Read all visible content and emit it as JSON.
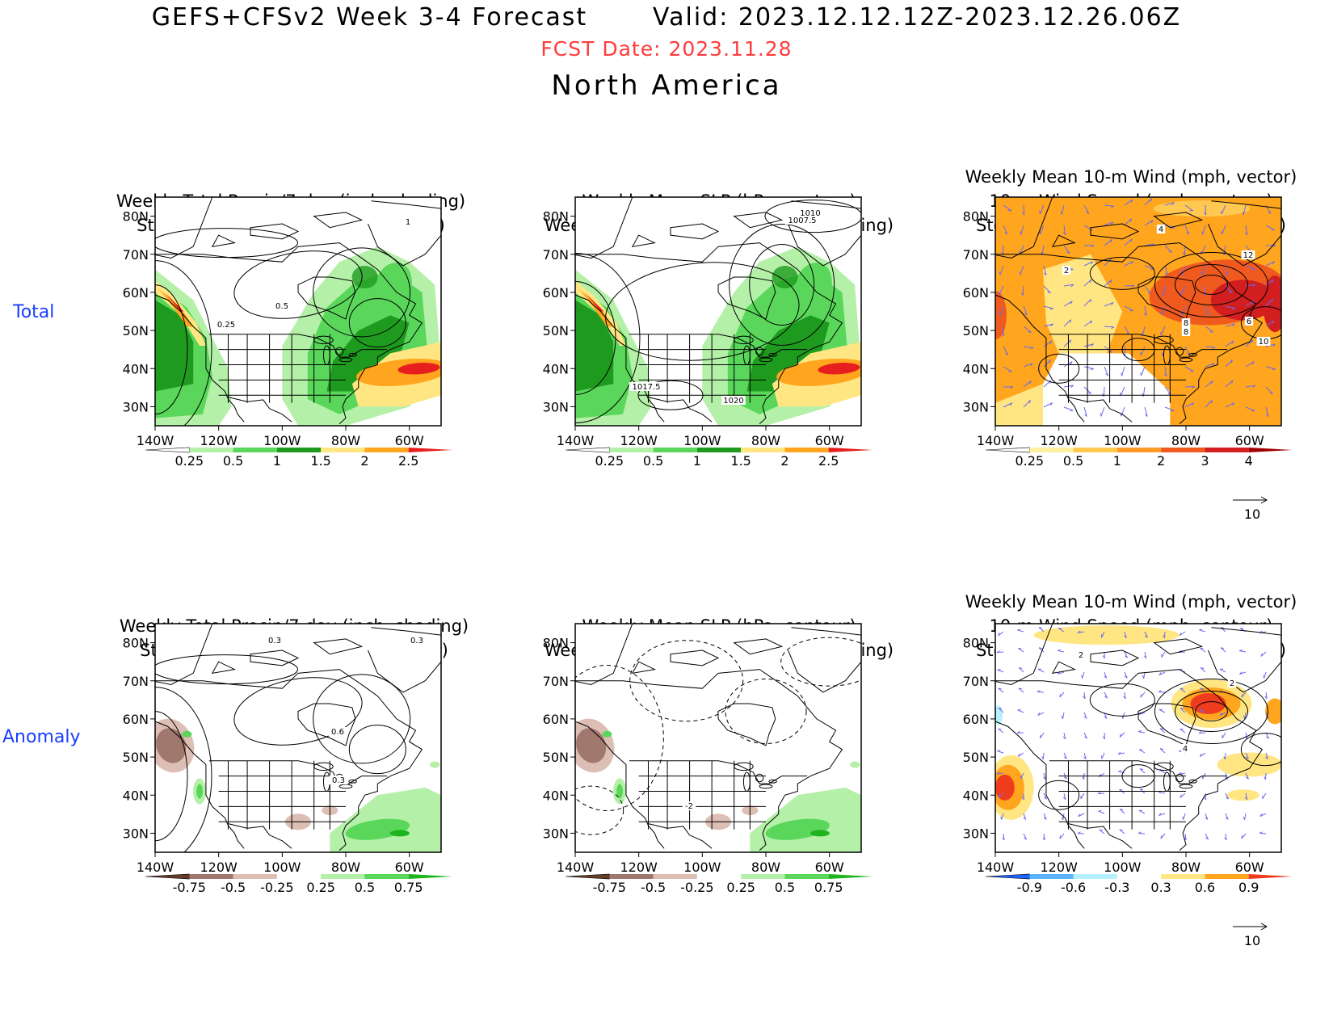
{
  "header": {
    "title": "GEFS+CFSv2 Week 3-4 Forecast       Valid: 2023.12.12.12Z-2023.12.26.06Z",
    "fcst_date": "FCST Date: 2023.11.28",
    "region": "North America"
  },
  "rows": [
    {
      "label": "Total"
    },
    {
      "label": "Anomaly"
    }
  ],
  "titles": {
    "precip_storm": [
      "Weekly Total Precip/7-day (inch, shading)",
      "Storm Track Density/7-day (contour)"
    ],
    "slp_precip": [
      "Weekly Mean SLP (hPa, contour)",
      "Weekly Total Precip/7-day (inch, shading)"
    ],
    "wind_storm": [
      "Weekly Mean 10-m Wind (mph, vector)",
      "10-m Wind Speed (mph, contour)",
      "Storm Track Density/7-day (shading)"
    ]
  },
  "axes": {
    "lat_labels": [
      "80N",
      "70N",
      "60N",
      "50N",
      "40N",
      "30N"
    ],
    "lon_labels": [
      "140W",
      "120W",
      "100W",
      "80W",
      "60W"
    ]
  },
  "colorbars": {
    "precip_total": {
      "labels": [
        "0.25",
        "0.5",
        "1",
        "1.5",
        "2",
        "2.5"
      ],
      "colors": [
        "#ffffff",
        "#b4f0a8",
        "#5ad75a",
        "#1e9b1e",
        "#ffe682",
        "#ffa51e",
        "#e61e1e"
      ]
    },
    "storm_total": {
      "labels": [
        "0.25",
        "0.5",
        "1",
        "2",
        "3",
        "4"
      ],
      "colors": [
        "#ffffff",
        "#fff0a0",
        "#ffc850",
        "#ff9a28",
        "#f05a1e",
        "#d21e1e",
        "#a00000"
      ]
    },
    "precip_anom": {
      "labels": [
        "-0.75",
        "-0.5",
        "-0.25",
        "0.25",
        "0.5",
        "0.75"
      ],
      "colors": [
        "#643c28",
        "#a0786e",
        "#dcbeb4",
        "#ffffff",
        "#b4f0a8",
        "#5ad75a",
        "#1eb41e"
      ]
    },
    "storm_anom": {
      "labels": [
        "-0.9",
        "-0.6",
        "-0.3",
        "0.3",
        "0.6",
        "0.9"
      ],
      "colors": [
        "#1e64ff",
        "#5ab4ff",
        "#b4f0ff",
        "#ffffff",
        "#ffe682",
        "#ffa51e",
        "#f03c1e"
      ]
    }
  },
  "wind_ref": {
    "value": "10"
  },
  "contour_labels": {
    "p1": [
      "1",
      "0.5",
      "0.25"
    ],
    "p2": [
      "1010",
      "1007.5",
      "1017.5",
      "1020"
    ],
    "p3": [
      "4",
      "2",
      "12",
      "8",
      "6",
      "8",
      "10"
    ],
    "p4": [
      "0.3",
      "0.3",
      "0.6",
      "0.3"
    ],
    "p5": [
      "-2"
    ],
    "p6": [
      "2",
      "2",
      "4"
    ]
  }
}
